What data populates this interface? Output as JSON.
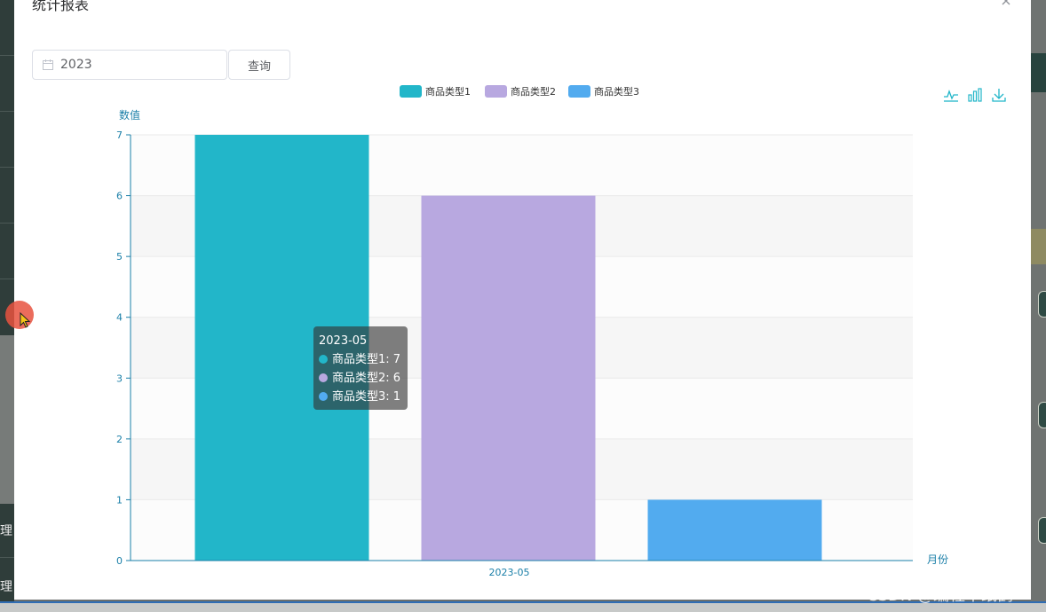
{
  "dialog": {
    "title": "统计报表"
  },
  "filter": {
    "year_value": "2023",
    "query_label": "查询"
  },
  "background": {
    "left_labels": [
      "理",
      "理"
    ]
  },
  "watermark": "CSDN @编程千纸鹤",
  "colors": {
    "series1": "#22b6c9",
    "series2": "#b8a8e0",
    "series3": "#52abef",
    "axis": "#1a7fa8"
  },
  "icons": [
    "close-icon",
    "calendar-icon",
    "line-chart-icon",
    "bar-chart-icon",
    "download-icon",
    "cursor-icon"
  ],
  "tooltip": {
    "title": "2023-05",
    "rows": [
      "商品类型1: 7",
      "商品类型2: 6",
      "商品类型3: 1"
    ]
  },
  "chart_data": {
    "type": "bar",
    "categories": [
      "2023-05"
    ],
    "series": [
      {
        "name": "商品类型1",
        "values": [
          7
        ]
      },
      {
        "name": "商品类型2",
        "values": [
          6
        ]
      },
      {
        "name": "商品类型3",
        "values": [
          1
        ]
      }
    ],
    "xlabel": "月份",
    "ylabel": "数值",
    "ylim": [
      0,
      7
    ],
    "yticks": [
      "0",
      "1",
      "2",
      "3",
      "4",
      "5",
      "6",
      "7"
    ],
    "legend_position": "top-center",
    "grid": true
  }
}
